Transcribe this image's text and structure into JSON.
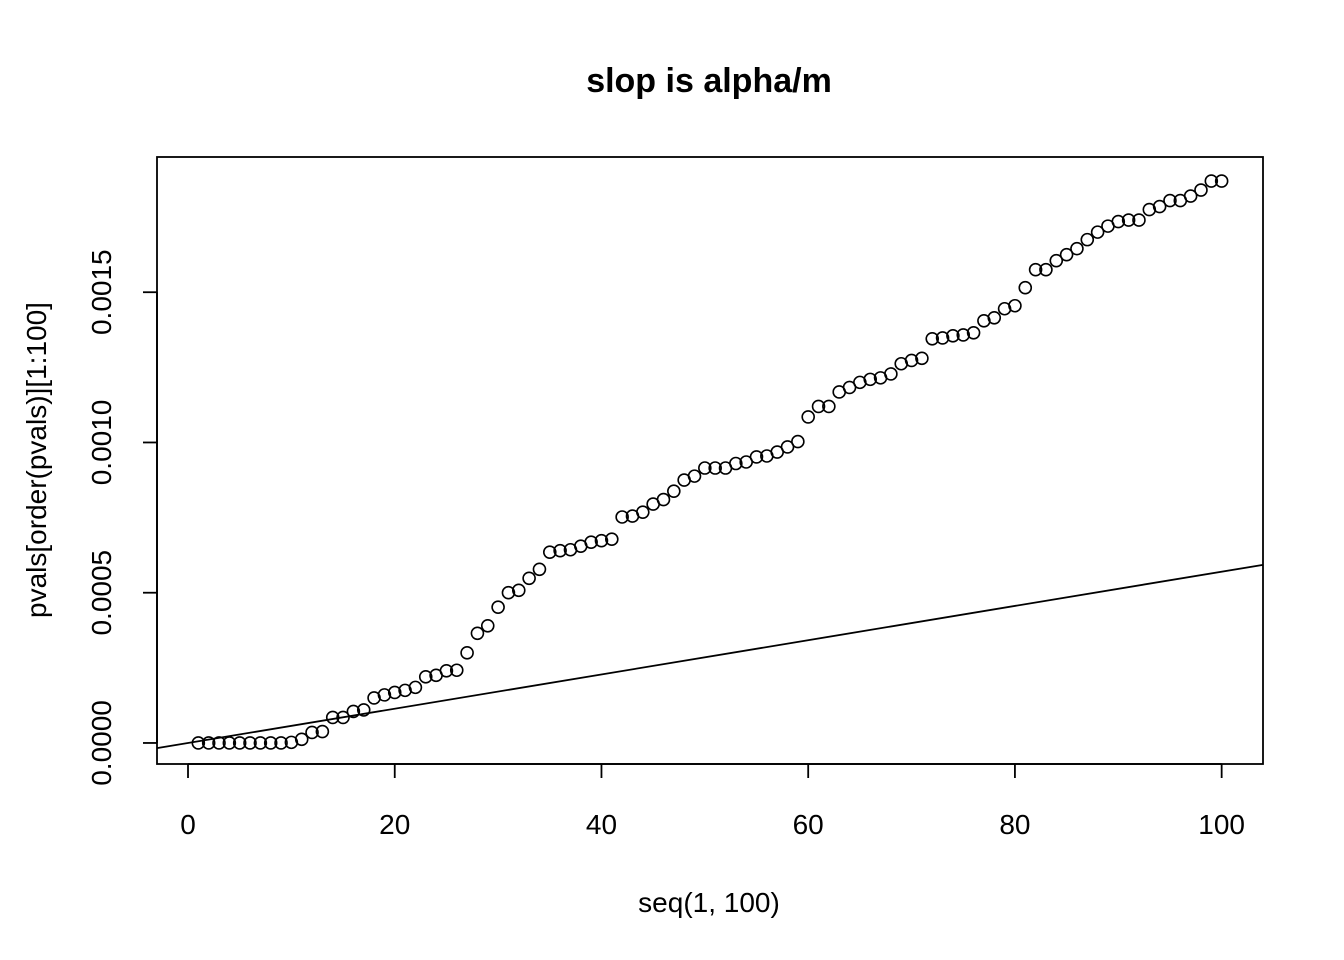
{
  "chart_data": {
    "type": "scatter",
    "title": "slop is alpha/m",
    "xlabel": "seq(1, 100)",
    "ylabel": "pvals[order(pvals)][1:100]",
    "xlim": [
      -3,
      104
    ],
    "ylim": [
      -7e-05,
      0.00195
    ],
    "xticks": [
      0,
      20,
      40,
      60,
      80,
      100
    ],
    "yticks": [
      0.0,
      0.0005,
      0.001,
      0.0015
    ],
    "xtick_labels": [
      "0",
      "20",
      "40",
      "60",
      "80",
      "100"
    ],
    "ytick_labels": [
      "0.0000",
      "0.0005",
      "0.0010",
      "0.0015"
    ],
    "grid": false,
    "reference_line": {
      "slope": 5.7e-06,
      "intercept": 0.0
    },
    "x": [
      1,
      2,
      3,
      4,
      5,
      6,
      7,
      8,
      9,
      10,
      11,
      12,
      13,
      14,
      15,
      16,
      17,
      18,
      19,
      20,
      21,
      22,
      23,
      24,
      25,
      26,
      27,
      28,
      29,
      30,
      31,
      32,
      33,
      34,
      35,
      36,
      37,
      38,
      39,
      40,
      41,
      42,
      43,
      44,
      45,
      46,
      47,
      48,
      49,
      50,
      51,
      52,
      53,
      54,
      55,
      56,
      57,
      58,
      59,
      60,
      61,
      62,
      63,
      64,
      65,
      66,
      67,
      68,
      69,
      70,
      71,
      72,
      73,
      74,
      75,
      76,
      77,
      78,
      79,
      80,
      81,
      82,
      83,
      84,
      85,
      86,
      87,
      88,
      89,
      90,
      91,
      92,
      93,
      94,
      95,
      96,
      97,
      98,
      99,
      100
    ],
    "y": [
      0.0,
      0.0,
      0.0,
      0.0,
      0.0,
      0.0,
      0.0,
      0.0,
      0.0,
      2e-06,
      1.2e-05,
      3.5e-05,
      3.8e-05,
      8.5e-05,
      8.5e-05,
      0.000105,
      0.00011,
      0.00015,
      0.00016,
      0.000168,
      0.000175,
      0.000185,
      0.00022,
      0.000225,
      0.00024,
      0.000242,
      0.0003,
      0.000365,
      0.00039,
      0.000452,
      0.0005,
      0.000508,
      0.000548,
      0.000578,
      0.000635,
      0.00064,
      0.000643,
      0.000655,
      0.000668,
      0.000673,
      0.000678,
      0.000752,
      0.000755,
      0.000768,
      0.000795,
      0.00081,
      0.000838,
      0.000875,
      0.000888,
      0.000915,
      0.000915,
      0.000915,
      0.00093,
      0.000935,
      0.000952,
      0.000955,
      0.000968,
      0.000985,
      0.001003,
      0.001085,
      0.00112,
      0.00112,
      0.001168,
      0.001183,
      0.0012,
      0.00121,
      0.001215,
      0.001228,
      0.001262,
      0.001273,
      0.00128,
      0.001345,
      0.001348,
      0.001355,
      0.001358,
      0.001365,
      0.001405,
      0.001415,
      0.001445,
      0.001455,
      0.001515,
      0.001575,
      0.001575,
      0.001605,
      0.001625,
      0.001645,
      0.001675,
      0.0017,
      0.00172,
      0.001735,
      0.00174,
      0.00174,
      0.001775,
      0.001785,
      0.001805,
      0.001805,
      0.00182,
      0.00184,
      0.00187,
      0.00187
    ]
  }
}
